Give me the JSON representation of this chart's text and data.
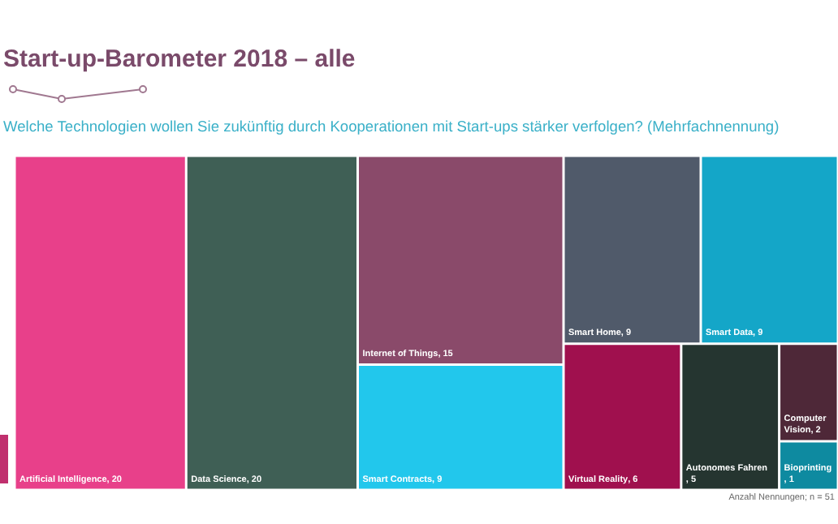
{
  "chart_data": {
    "type": "other",
    "title": "Start-up-Barometer 2018 – alle",
    "subtitle": "Welche Technologien wollen Sie zukünftig durch Kooperationen mit Start-ups stärker verfolgen? (Mehrfachnennung)",
    "categories": [
      "Artificial Intelligence",
      "Data Science",
      "Internet of Things",
      "Smart Contracts",
      "Smart Home",
      "Smart Data",
      "Virtual Reality",
      "Autonomes Fahren",
      "Computer Vision",
      "Bioprinting"
    ],
    "values": [
      20,
      20,
      15,
      9,
      9,
      9,
      6,
      5,
      2,
      1
    ],
    "colors": [
      "#e8408a",
      "#3f5f55",
      "#8a4a6a",
      "#22c7ec",
      "#505a6a",
      "#14a6c8",
      "#a0104e",
      "#253530",
      "#4e2838",
      "#0e8aa0"
    ],
    "value_labels": [
      ", 20",
      ", 20",
      ", 15",
      ", 9",
      ", 9",
      ", 9",
      ", 6",
      ", 5",
      ", 2",
      ", 1"
    ],
    "annotations": [
      "Anzahl Nennungen; n = 51"
    ]
  }
}
